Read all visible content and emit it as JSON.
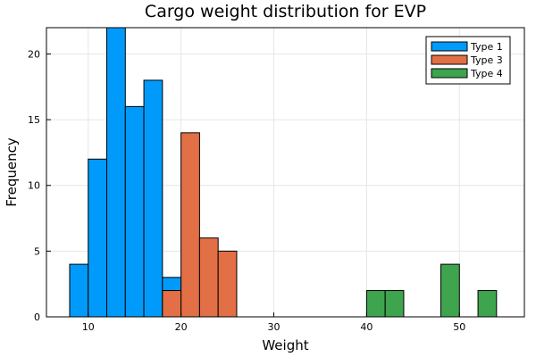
{
  "chart_data": {
    "type": "bar",
    "subtype": "histogram",
    "title": "Cargo weight distribution for EVP",
    "xlabel": "Weight",
    "ylabel": "Frequency",
    "xlim": [
      5.5,
      57
    ],
    "ylim": [
      0,
      22
    ],
    "xticks": [
      10,
      20,
      30,
      40,
      50
    ],
    "yticks": [
      0,
      5,
      10,
      15,
      20
    ],
    "grid": true,
    "legend_position": "top-right",
    "series": [
      {
        "name": "Type 1",
        "color": "#009AFA",
        "bins": [
          {
            "x0": 8,
            "x1": 10,
            "value": 4
          },
          {
            "x0": 10,
            "x1": 12,
            "value": 12
          },
          {
            "x0": 12,
            "x1": 14,
            "value": 22
          },
          {
            "x0": 14,
            "x1": 16,
            "value": 16
          },
          {
            "x0": 16,
            "x1": 18,
            "value": 18
          },
          {
            "x0": 18,
            "x1": 20,
            "value": 3
          }
        ]
      },
      {
        "name": "Type 3",
        "color": "#E26F46",
        "bins": [
          {
            "x0": 18,
            "x1": 20,
            "value": 2
          },
          {
            "x0": 20,
            "x1": 22,
            "value": 14
          },
          {
            "x0": 22,
            "x1": 24,
            "value": 6
          },
          {
            "x0": 24,
            "x1": 26,
            "value": 5
          }
        ]
      },
      {
        "name": "Type 4",
        "color": "#3EA44E",
        "bins": [
          {
            "x0": 40,
            "x1": 42,
            "value": 2
          },
          {
            "x0": 42,
            "x1": 44,
            "value": 2
          },
          {
            "x0": 48,
            "x1": 50,
            "value": 4
          },
          {
            "x0": 52,
            "x1": 54,
            "value": 2
          }
        ]
      }
    ]
  }
}
